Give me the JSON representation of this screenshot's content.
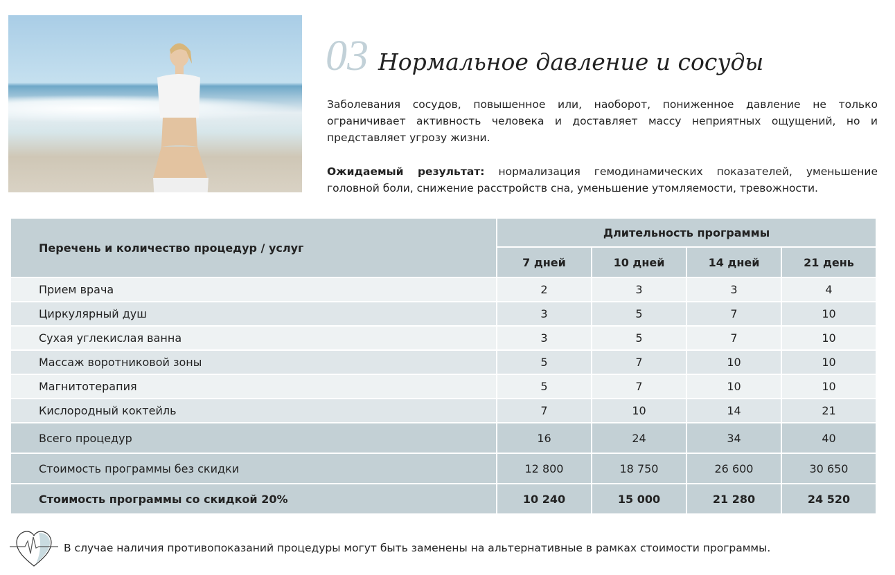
{
  "header": {
    "number": "03",
    "title": "Нормальное давление и сосуды"
  },
  "intro": "Заболевания сосудов, повышенное или, наоборот, пониженное давление не только ограничивает активность человека и доставляет массу неприятных ощущений, но и представляет угрозу жизни.",
  "result": {
    "label": "Ожидаемый результат:",
    "text": " нормализация гемодинамических показателей, уменьшение головной боли, снижение расстройств сна, уменьшение утомляемости, тревожности."
  },
  "table": {
    "col_header": "Перечень и количество процедур / услуг",
    "group_header": "Длительность программы",
    "durations": [
      "7 дней",
      "10 дней",
      "14 дней",
      "21 день"
    ],
    "rows": [
      {
        "name": "Прием врача",
        "values": [
          "2",
          "3",
          "3",
          "4"
        ]
      },
      {
        "name": "Циркулярный душ",
        "values": [
          "3",
          "5",
          "7",
          "10"
        ]
      },
      {
        "name": "Сухая углекислая ванна",
        "values": [
          "3",
          "5",
          "7",
          "10"
        ]
      },
      {
        "name": "Массаж воротниковой зоны",
        "values": [
          "5",
          "7",
          "10",
          "10"
        ]
      },
      {
        "name": "Магнитотерапия",
        "values": [
          "5",
          "7",
          "10",
          "10"
        ]
      },
      {
        "name": "Кислородный коктейль",
        "values": [
          "7",
          "10",
          "14",
          "21"
        ]
      }
    ],
    "totals": [
      {
        "name": "Всего процедур",
        "values": [
          "16",
          "24",
          "34",
          "40"
        ]
      },
      {
        "name": "Стоимость программы без скидки",
        "values": [
          "12 800",
          "18 750",
          "26 600",
          "30 650"
        ]
      },
      {
        "name": "Стоимость программы со скидкой 20%",
        "values": [
          "10 240",
          "15 000",
          "21 280",
          "24 520"
        ]
      }
    ]
  },
  "footer": {
    "icon": "heart-pulse-icon",
    "note": "В случае наличия противопоказаний процедуры могут быть заменены на альтернативные в рамках стоимости программы."
  },
  "colors": {
    "header": "#c3d0d5",
    "row_dark": "#dfe6e9",
    "row_light": "#eef2f3",
    "number": "#c2d1d8"
  }
}
